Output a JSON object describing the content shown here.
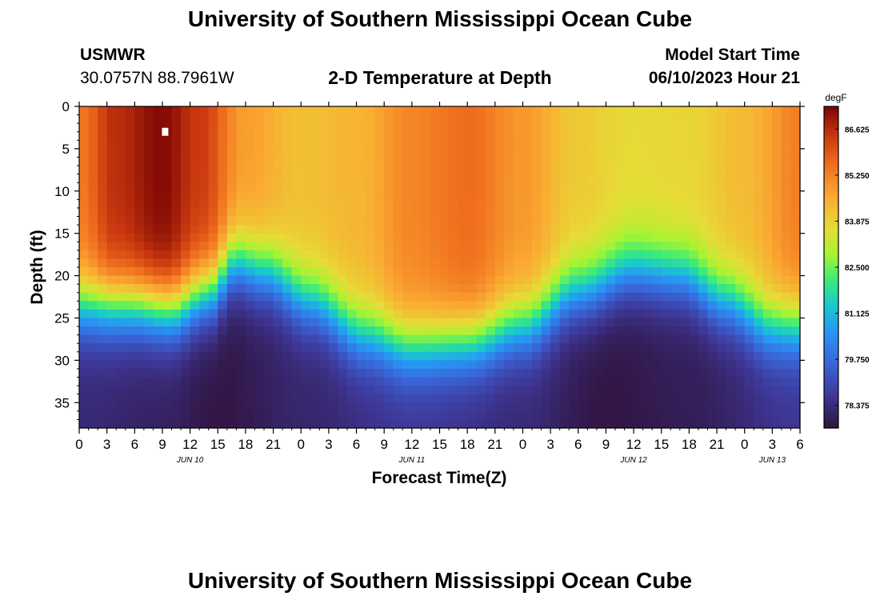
{
  "page": {
    "title_top": "University of Southern Mississippi Ocean Cube",
    "title_bottom": "University of Southern Mississippi Ocean Cube",
    "station": {
      "name": "USMWR",
      "coords": "30.0757N  88.7961W"
    },
    "model_start": {
      "label": "Model Start Time",
      "value": "06/10/2023 Hour 21"
    }
  },
  "chart_data": {
    "type": "heatmap",
    "title": "2-D Temperature at Depth",
    "xlabel": "Forecast Time(Z)",
    "ylabel": "Depth (ft)",
    "x_range_hours": [
      0,
      78
    ],
    "ylim": [
      38,
      0
    ],
    "y_ticks": [
      0,
      5,
      10,
      15,
      20,
      25,
      30,
      35
    ],
    "x_ticks": [
      {
        "hour": 0,
        "label": "0"
      },
      {
        "hour": 3,
        "label": "3"
      },
      {
        "hour": 6,
        "label": "6"
      },
      {
        "hour": 9,
        "label": "9"
      },
      {
        "hour": 12,
        "label": "12"
      },
      {
        "hour": 15,
        "label": "15"
      },
      {
        "hour": 18,
        "label": "18"
      },
      {
        "hour": 21,
        "label": "21"
      },
      {
        "hour": 24,
        "label": "0"
      },
      {
        "hour": 27,
        "label": "3"
      },
      {
        "hour": 30,
        "label": "6"
      },
      {
        "hour": 33,
        "label": "9"
      },
      {
        "hour": 36,
        "label": "12"
      },
      {
        "hour": 39,
        "label": "15"
      },
      {
        "hour": 42,
        "label": "18"
      },
      {
        "hour": 45,
        "label": "21"
      },
      {
        "hour": 48,
        "label": "0"
      },
      {
        "hour": 51,
        "label": "3"
      },
      {
        "hour": 54,
        "label": "6"
      },
      {
        "hour": 57,
        "label": "9"
      },
      {
        "hour": 60,
        "label": "12"
      },
      {
        "hour": 63,
        "label": "15"
      },
      {
        "hour": 66,
        "label": "18"
      },
      {
        "hour": 69,
        "label": "21"
      },
      {
        "hour": 72,
        "label": "0"
      },
      {
        "hour": 75,
        "label": "3"
      },
      {
        "hour": 78,
        "label": "6"
      }
    ],
    "day_labels": [
      {
        "hour": 12,
        "label": "JUN 10"
      },
      {
        "hour": 36,
        "label": "JUN 11"
      },
      {
        "hour": 60,
        "label": "JUN 12"
      },
      {
        "hour": 75,
        "label": "JUN 13"
      }
    ],
    "colorbar": {
      "unit": "degF",
      "range": [
        77.7,
        87.3
      ],
      "ticks": [
        78.375,
        79.75,
        81.125,
        82.5,
        83.875,
        85.25,
        86.625
      ],
      "tick_labels": [
        "78.375",
        "79.750",
        "81.125",
        "82.500",
        "83.875",
        "85.250",
        "86.625"
      ]
    },
    "thermocline_depth_ft": [
      {
        "hour": 0,
        "depth": 23.5
      },
      {
        "hour": 6,
        "depth": 23.5
      },
      {
        "hour": 10,
        "depth": 24
      },
      {
        "hour": 14,
        "depth": 22
      },
      {
        "hour": 17,
        "depth": 18.5
      },
      {
        "hour": 20,
        "depth": 19.5
      },
      {
        "hour": 25,
        "depth": 23
      },
      {
        "hour": 31,
        "depth": 27
      },
      {
        "hour": 36,
        "depth": 28.5
      },
      {
        "hour": 42,
        "depth": 28
      },
      {
        "hour": 48,
        "depth": 26
      },
      {
        "hour": 54,
        "depth": 22
      },
      {
        "hour": 60,
        "depth": 19.5
      },
      {
        "hour": 65,
        "depth": 20
      },
      {
        "hour": 70,
        "depth": 23
      },
      {
        "hour": 75,
        "depth": 26
      },
      {
        "hour": 78,
        "depth": 26
      }
    ],
    "surface_temp_degF": [
      {
        "hour": 0,
        "value": 85.4
      },
      {
        "hour": 4,
        "value": 86.6
      },
      {
        "hour": 9,
        "value": 87.2
      },
      {
        "hour": 13,
        "value": 86.4
      },
      {
        "hour": 18,
        "value": 84.8
      },
      {
        "hour": 24,
        "value": 84.2
      },
      {
        "hour": 30,
        "value": 84.4
      },
      {
        "hour": 36,
        "value": 85.2
      },
      {
        "hour": 42,
        "value": 85.6
      },
      {
        "hour": 48,
        "value": 84.9
      },
      {
        "hour": 54,
        "value": 84.0
      },
      {
        "hour": 60,
        "value": 83.7
      },
      {
        "hour": 66,
        "value": 83.8
      },
      {
        "hour": 72,
        "value": 84.3
      },
      {
        "hour": 78,
        "value": 85.3
      }
    ],
    "bottom_temp_degF": [
      {
        "hour": 0,
        "value": 78.3
      },
      {
        "hour": 9,
        "value": 78.1
      },
      {
        "hour": 15,
        "value": 77.8
      },
      {
        "hour": 24,
        "value": 78.2
      },
      {
        "hour": 36,
        "value": 78.6
      },
      {
        "hour": 48,
        "value": 78.3
      },
      {
        "hour": 57,
        "value": 77.8
      },
      {
        "hour": 66,
        "value": 78.0
      },
      {
        "hour": 78,
        "value": 78.6
      }
    ],
    "marker": {
      "hour": 9.3,
      "depth": 3.0
    }
  }
}
